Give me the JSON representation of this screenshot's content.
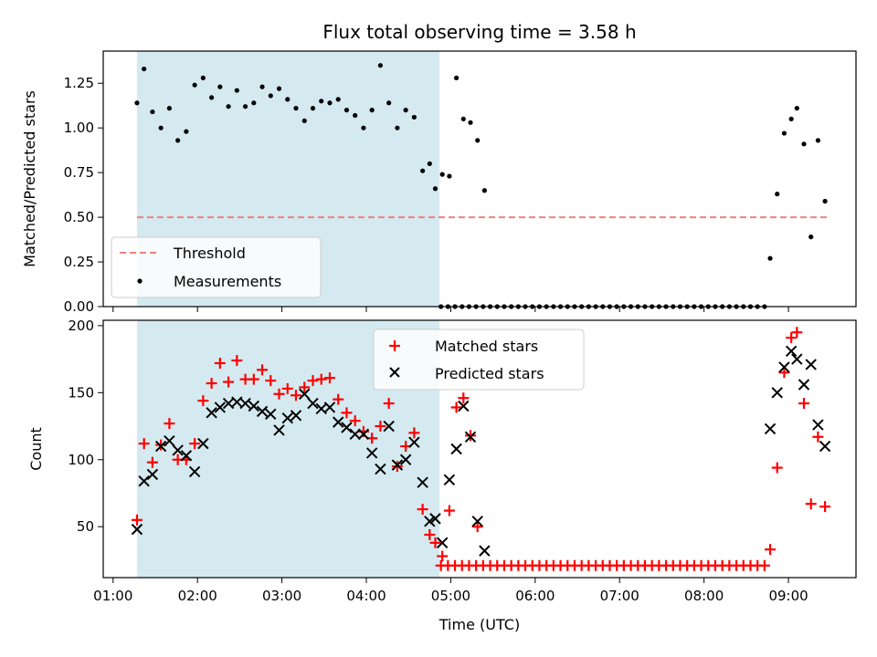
{
  "chart_data": [
    {
      "type": "scatter",
      "title": "Flux total observing time = 3.58 h",
      "xlabel": "",
      "ylabel": "Matched/Predicted stars",
      "ylim": [
        0,
        1.43
      ],
      "xlim": [
        "00:53",
        "09:48"
      ],
      "y_ticks": [
        "0.00",
        "0.25",
        "0.50",
        "0.75",
        "1.00",
        "1.25"
      ],
      "x_tick_labels_shown": false,
      "shaded_interval": {
        "start": "01:17",
        "end": "04:52",
        "color": "#d4eaf0"
      },
      "legend": {
        "placement": "lower-left",
        "entries": [
          "Threshold",
          "Measurements"
        ]
      },
      "threshold": {
        "name": "Threshold",
        "value": 0.5,
        "x": [
          "01:17",
          "09:28"
        ],
        "color": "#f08080",
        "style": "dashed"
      },
      "measurements": {
        "name": "Measurements",
        "color": "#000000",
        "points": [
          [
            "01:17",
            1.14
          ],
          [
            "01:22",
            1.33
          ],
          [
            "01:28",
            1.09
          ],
          [
            "01:34",
            1.0
          ],
          [
            "01:40",
            1.11
          ],
          [
            "01:46",
            0.93
          ],
          [
            "01:52",
            0.98
          ],
          [
            "01:58",
            1.24
          ],
          [
            "02:04",
            1.28
          ],
          [
            "02:10",
            1.17
          ],
          [
            "02:16",
            1.23
          ],
          [
            "02:22",
            1.12
          ],
          [
            "02:28",
            1.21
          ],
          [
            "02:34",
            1.12
          ],
          [
            "02:40",
            1.14
          ],
          [
            "02:46",
            1.23
          ],
          [
            "02:52",
            1.18
          ],
          [
            "02:58",
            1.22
          ],
          [
            "03:04",
            1.16
          ],
          [
            "03:10",
            1.11
          ],
          [
            "03:16",
            1.04
          ],
          [
            "03:22",
            1.11
          ],
          [
            "03:28",
            1.15
          ],
          [
            "03:34",
            1.14
          ],
          [
            "03:40",
            1.16
          ],
          [
            "03:46",
            1.1
          ],
          [
            "03:52",
            1.07
          ],
          [
            "03:58",
            1.0
          ],
          [
            "04:04",
            1.1
          ],
          [
            "04:10",
            1.35
          ],
          [
            "04:16",
            1.14
          ],
          [
            "04:22",
            1.0
          ],
          [
            "04:28",
            1.1
          ],
          [
            "04:34",
            1.06
          ],
          [
            "04:40",
            0.76
          ],
          [
            "04:45",
            0.8
          ],
          [
            "04:49",
            0.66
          ],
          [
            "04:54",
            0.74
          ],
          [
            "04:59",
            0.73
          ],
          [
            "05:04",
            1.28
          ],
          [
            "05:09",
            1.05
          ],
          [
            "05:14",
            1.03
          ],
          [
            "05:19",
            0.93
          ],
          [
            "05:24",
            0.65
          ],
          [
            "04:53",
            0.0
          ],
          [
            "04:58",
            0.0
          ],
          [
            "05:03",
            0.0
          ],
          [
            "05:08",
            0.0
          ],
          [
            "05:13",
            0.0
          ],
          [
            "05:18",
            0.0
          ],
          [
            "05:23",
            0.0
          ],
          [
            "05:28",
            0.0
          ],
          [
            "05:33",
            0.0
          ],
          [
            "05:38",
            0.0
          ],
          [
            "05:43",
            0.0
          ],
          [
            "05:48",
            0.0
          ],
          [
            "05:53",
            0.0
          ],
          [
            "05:58",
            0.0
          ],
          [
            "06:03",
            0.0
          ],
          [
            "06:08",
            0.0
          ],
          [
            "06:13",
            0.0
          ],
          [
            "06:18",
            0.0
          ],
          [
            "06:23",
            0.0
          ],
          [
            "06:28",
            0.0
          ],
          [
            "06:33",
            0.0
          ],
          [
            "06:38",
            0.0
          ],
          [
            "06:43",
            0.0
          ],
          [
            "06:48",
            0.0
          ],
          [
            "06:53",
            0.0
          ],
          [
            "06:58",
            0.0
          ],
          [
            "07:03",
            0.0
          ],
          [
            "07:08",
            0.0
          ],
          [
            "07:13",
            0.0
          ],
          [
            "07:18",
            0.0
          ],
          [
            "07:23",
            0.0
          ],
          [
            "07:28",
            0.0
          ],
          [
            "07:33",
            0.0
          ],
          [
            "07:38",
            0.0
          ],
          [
            "07:43",
            0.0
          ],
          [
            "07:48",
            0.0
          ],
          [
            "07:53",
            0.0
          ],
          [
            "07:58",
            0.0
          ],
          [
            "08:03",
            0.0
          ],
          [
            "08:08",
            0.0
          ],
          [
            "08:13",
            0.0
          ],
          [
            "08:18",
            0.0
          ],
          [
            "08:23",
            0.0
          ],
          [
            "08:28",
            0.0
          ],
          [
            "08:33",
            0.0
          ],
          [
            "08:38",
            0.0
          ],
          [
            "08:43",
            0.0
          ],
          [
            "08:47",
            0.27
          ],
          [
            "08:52",
            0.63
          ],
          [
            "08:57",
            0.97
          ],
          [
            "09:02",
            1.05
          ],
          [
            "09:06",
            1.11
          ],
          [
            "09:11",
            0.91
          ],
          [
            "09:16",
            0.39
          ],
          [
            "09:21",
            0.93
          ],
          [
            "09:26",
            0.59
          ]
        ]
      }
    },
    {
      "type": "scatter",
      "title": "",
      "xlabel": "Time (UTC)",
      "ylabel": "Count",
      "ylim": [
        12,
        204
      ],
      "xlim": [
        "00:53",
        "09:48"
      ],
      "y_ticks": [
        "50",
        "100",
        "150",
        "200"
      ],
      "x_ticks": [
        "01:00",
        "02:00",
        "03:00",
        "04:00",
        "05:00",
        "06:00",
        "07:00",
        "08:00",
        "09:00"
      ],
      "shaded_interval": {
        "start": "01:17",
        "end": "04:52",
        "color": "#d4eaf0"
      },
      "legend": {
        "placement": "upper-center",
        "entries": [
          "Matched stars",
          "Predicted stars"
        ]
      },
      "series": [
        {
          "name": "Matched stars",
          "marker": "+",
          "color": "#ff0000",
          "points": [
            [
              "01:17",
              55
            ],
            [
              "01:22",
              112
            ],
            [
              "01:28",
              98
            ],
            [
              "01:34",
              111
            ],
            [
              "01:40",
              127
            ],
            [
              "01:46",
              100
            ],
            [
              "01:52",
              100
            ],
            [
              "01:58",
              112
            ],
            [
              "02:04",
              144
            ],
            [
              "02:10",
              157
            ],
            [
              "02:16",
              172
            ],
            [
              "02:22",
              158
            ],
            [
              "02:28",
              174
            ],
            [
              "02:34",
              160
            ],
            [
              "02:40",
              160
            ],
            [
              "02:46",
              167
            ],
            [
              "02:52",
              159
            ],
            [
              "02:58",
              149
            ],
            [
              "03:04",
              153
            ],
            [
              "03:10",
              148
            ],
            [
              "03:16",
              154
            ],
            [
              "03:22",
              159
            ],
            [
              "03:28",
              160
            ],
            [
              "03:34",
              161
            ],
            [
              "03:40",
              145
            ],
            [
              "03:46",
              135
            ],
            [
              "03:52",
              129
            ],
            [
              "03:58",
              121
            ],
            [
              "04:04",
              116
            ],
            [
              "04:10",
              125
            ],
            [
              "04:16",
              142
            ],
            [
              "04:22",
              95
            ],
            [
              "04:28",
              110
            ],
            [
              "04:34",
              120
            ],
            [
              "04:40",
              63
            ],
            [
              "04:45",
              44
            ],
            [
              "04:49",
              38
            ],
            [
              "04:54",
              28
            ],
            [
              "04:59",
              62
            ],
            [
              "05:04",
              139
            ],
            [
              "05:09",
              146
            ],
            [
              "05:14",
              118
            ],
            [
              "05:19",
              50
            ],
            [
              "04:53",
              21
            ],
            [
              "04:58",
              21
            ],
            [
              "05:03",
              21
            ],
            [
              "05:08",
              21
            ],
            [
              "05:13",
              21
            ],
            [
              "05:18",
              21
            ],
            [
              "05:23",
              21
            ],
            [
              "05:28",
              21
            ],
            [
              "05:33",
              21
            ],
            [
              "05:38",
              21
            ],
            [
              "05:43",
              21
            ],
            [
              "05:48",
              21
            ],
            [
              "05:53",
              21
            ],
            [
              "05:58",
              21
            ],
            [
              "06:03",
              21
            ],
            [
              "06:08",
              21
            ],
            [
              "06:13",
              21
            ],
            [
              "06:18",
              21
            ],
            [
              "06:23",
              21
            ],
            [
              "06:28",
              21
            ],
            [
              "06:33",
              21
            ],
            [
              "06:38",
              21
            ],
            [
              "06:43",
              21
            ],
            [
              "06:48",
              21
            ],
            [
              "06:53",
              21
            ],
            [
              "06:58",
              21
            ],
            [
              "07:03",
              21
            ],
            [
              "07:08",
              21
            ],
            [
              "07:13",
              21
            ],
            [
              "07:18",
              21
            ],
            [
              "07:23",
              21
            ],
            [
              "07:28",
              21
            ],
            [
              "07:33",
              21
            ],
            [
              "07:38",
              21
            ],
            [
              "07:43",
              21
            ],
            [
              "07:48",
              21
            ],
            [
              "07:53",
              21
            ],
            [
              "07:58",
              21
            ],
            [
              "08:03",
              21
            ],
            [
              "08:08",
              21
            ],
            [
              "08:13",
              21
            ],
            [
              "08:18",
              21
            ],
            [
              "08:23",
              21
            ],
            [
              "08:28",
              21
            ],
            [
              "08:33",
              21
            ],
            [
              "08:38",
              21
            ],
            [
              "08:43",
              21
            ],
            [
              "08:47",
              33
            ],
            [
              "08:52",
              94
            ],
            [
              "08:57",
              165
            ],
            [
              "09:02",
              191
            ],
            [
              "09:06",
              195
            ],
            [
              "09:11",
              142
            ],
            [
              "09:16",
              67
            ],
            [
              "09:21",
              117
            ],
            [
              "09:26",
              65
            ]
          ]
        },
        {
          "name": "Predicted stars",
          "marker": "x",
          "color": "#000000",
          "points": [
            [
              "01:17",
              48
            ],
            [
              "01:22",
              84
            ],
            [
              "01:28",
              89
            ],
            [
              "01:34",
              110
            ],
            [
              "01:40",
              114
            ],
            [
              "01:46",
              107
            ],
            [
              "01:52",
              103
            ],
            [
              "01:58",
              91
            ],
            [
              "02:04",
              112
            ],
            [
              "02:10",
              135
            ],
            [
              "02:16",
              139
            ],
            [
              "02:22",
              142
            ],
            [
              "02:28",
              143
            ],
            [
              "02:34",
              142
            ],
            [
              "02:40",
              140
            ],
            [
              "02:46",
              136
            ],
            [
              "02:52",
              134
            ],
            [
              "02:58",
              122
            ],
            [
              "03:04",
              131
            ],
            [
              "03:10",
              133
            ],
            [
              "03:16",
              149
            ],
            [
              "03:22",
              142
            ],
            [
              "03:28",
              138
            ],
            [
              "03:34",
              139
            ],
            [
              "03:40",
              128
            ],
            [
              "03:46",
              124
            ],
            [
              "03:52",
              119
            ],
            [
              "03:58",
              119
            ],
            [
              "04:04",
              105
            ],
            [
              "04:10",
              93
            ],
            [
              "04:16",
              125
            ],
            [
              "04:22",
              96
            ],
            [
              "04:28",
              100
            ],
            [
              "04:34",
              113
            ],
            [
              "04:40",
              83
            ],
            [
              "04:45",
              54
            ],
            [
              "04:49",
              56
            ],
            [
              "04:54",
              38
            ],
            [
              "04:59",
              85
            ],
            [
              "05:04",
              108
            ],
            [
              "05:09",
              140
            ],
            [
              "05:14",
              117
            ],
            [
              "05:19",
              54
            ],
            [
              "05:24",
              32
            ],
            [
              "08:47",
              123
            ],
            [
              "08:52",
              150
            ],
            [
              "08:57",
              169
            ],
            [
              "09:02",
              181
            ],
            [
              "09:06",
              175
            ],
            [
              "09:11",
              156
            ],
            [
              "09:16",
              171
            ],
            [
              "09:21",
              126
            ],
            [
              "09:26",
              110
            ]
          ]
        }
      ]
    }
  ]
}
